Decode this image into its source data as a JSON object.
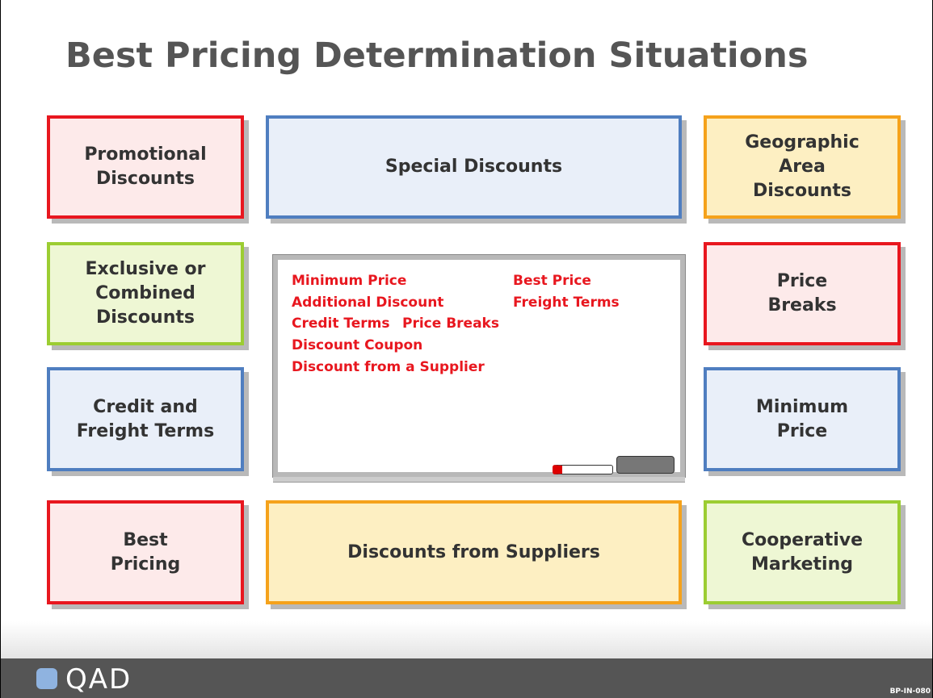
{
  "header": {
    "title": "Best Pricing Determination Situations"
  },
  "boxes": [
    {
      "lines": [
        "Promotional",
        "Discounts"
      ]
    },
    {
      "lines": [
        "Special Discounts"
      ]
    },
    {
      "lines": [
        "Geographic",
        "Area",
        "Discounts"
      ]
    },
    {
      "lines": [
        "Exclusive or",
        "Combined",
        "Discounts"
      ]
    },
    {
      "lines": [
        "Price",
        "Breaks"
      ]
    },
    {
      "lines": [
        "Credit and",
        "Freight Terms"
      ]
    },
    {
      "lines": [
        "Minimum",
        "Price"
      ]
    },
    {
      "lines": [
        "Best",
        "Pricing"
      ]
    },
    {
      "lines": [
        "Discounts from Suppliers"
      ]
    },
    {
      "lines": [
        "Cooperative",
        "Marketing"
      ]
    }
  ],
  "whiteboard": {
    "items": [
      "Minimum Price",
      "Best Price",
      "Additional Discount",
      "Freight Terms",
      "Credit Terms",
      "Price Breaks",
      "Discount Coupon",
      "Discount from a Supplier"
    ]
  },
  "footer": {
    "logo": "QAD",
    "code": "BP-IN-080"
  }
}
